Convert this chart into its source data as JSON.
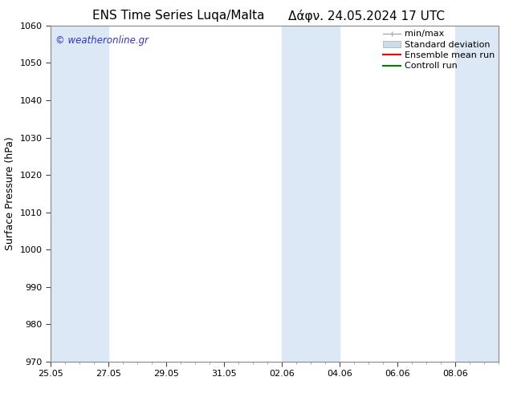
{
  "title_left": "ENS Time Series Luqa/Malta",
  "title_right": "Δάφν. 24.05.2024 17 UTC",
  "ylabel": "Surface Pressure (hPa)",
  "ylim": [
    970,
    1060
  ],
  "yticks": [
    970,
    980,
    990,
    1000,
    1010,
    1020,
    1030,
    1040,
    1050,
    1060
  ],
  "xtick_labels": [
    "25.05",
    "27.05",
    "29.05",
    "31.05",
    "02.06",
    "04.06",
    "06.06",
    "08.06"
  ],
  "xtick_positions": [
    0,
    2,
    4,
    6,
    8,
    10,
    12,
    14
  ],
  "shaded_ranges": [
    [
      0,
      2
    ],
    [
      8,
      10
    ],
    [
      14,
      15.5
    ]
  ],
  "xlim": [
    0,
    15.5
  ],
  "band_color": "#dce8f5",
  "background_color": "#ffffff",
  "watermark": "© weatheronline.gr",
  "watermark_color": "#3333bb",
  "legend_labels": [
    "min/max",
    "Standard deviation",
    "Ensemble mean run",
    "Controll run"
  ],
  "legend_colors": [
    "#aaaaaa",
    "#ccdcec",
    "#ff0000",
    "#008000"
  ],
  "title_fontsize": 11,
  "axis_fontsize": 9,
  "tick_fontsize": 8,
  "legend_fontsize": 8,
  "figsize": [
    6.34,
    4.9
  ],
  "dpi": 100
}
